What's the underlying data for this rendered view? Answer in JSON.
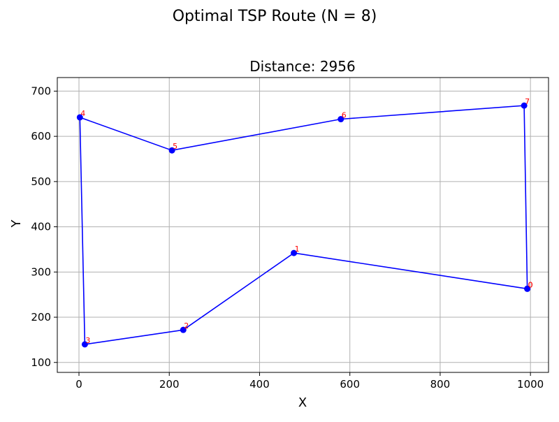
{
  "chart_data": {
    "type": "line",
    "suptitle": "Optimal TSP Route (N = 8)",
    "title": "Distance: 2956",
    "xlabel": "X",
    "ylabel": "Y",
    "xlim": [
      -48,
      1040
    ],
    "ylim": [
      78,
      730
    ],
    "xticks": [
      0,
      200,
      400,
      600,
      800,
      1000
    ],
    "yticks": [
      100,
      200,
      300,
      400,
      500,
      600,
      700
    ],
    "grid": true,
    "line_color": "#0000ff",
    "marker_color": "#0000ff",
    "label_color": "#ff0000",
    "route": [
      {
        "label": "0",
        "x": 993,
        "y": 263
      },
      {
        "label": "1",
        "x": 476,
        "y": 342
      },
      {
        "label": "2",
        "x": 231,
        "y": 172
      },
      {
        "label": "3",
        "x": 13,
        "y": 140
      },
      {
        "label": "4",
        "x": 2,
        "y": 642
      },
      {
        "label": "5",
        "x": 206,
        "y": 569
      },
      {
        "label": "6",
        "x": 580,
        "y": 638
      },
      {
        "label": "7",
        "x": 986,
        "y": 668
      },
      {
        "label": "0",
        "x": 993,
        "y": 263
      }
    ]
  }
}
